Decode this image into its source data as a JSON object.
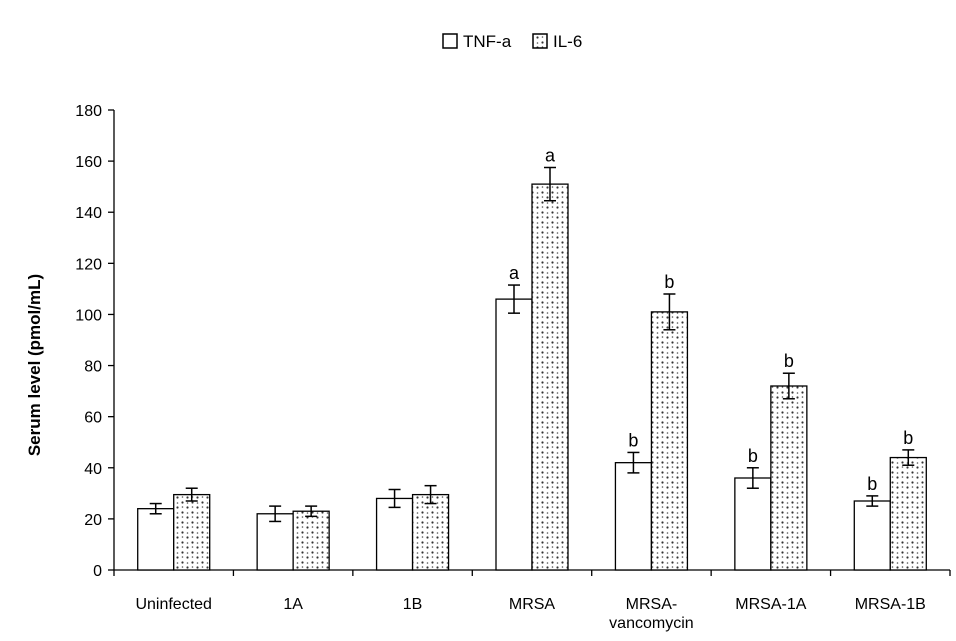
{
  "chart_data": {
    "type": "bar",
    "categories": [
      "Uninfected",
      "1A",
      "1B",
      "MRSA",
      "MRSA-vancomycin",
      "MRSA-1A",
      "MRSA-1B"
    ],
    "category_lines": [
      [
        "Uninfected"
      ],
      [
        "1A"
      ],
      [
        "1B"
      ],
      [
        "MRSA"
      ],
      [
        "MRSA-",
        "vancomycin"
      ],
      [
        "MRSA-1A"
      ],
      [
        "MRSA-1B"
      ]
    ],
    "series": [
      {
        "name": "TNF-a",
        "values": [
          24,
          22,
          28,
          106,
          42,
          36,
          27
        ],
        "errors": [
          2,
          3,
          3.5,
          5.5,
          4,
          4,
          2
        ],
        "annotations": [
          "",
          "",
          "",
          "a",
          "b",
          "b",
          "b"
        ],
        "pattern": "plain"
      },
      {
        "name": "IL-6",
        "values": [
          29.5,
          23,
          29.5,
          151,
          101,
          72,
          44
        ],
        "errors": [
          2.5,
          2,
          3.5,
          6.5,
          7,
          5,
          3
        ],
        "annotations": [
          "",
          "",
          "",
          "a",
          "b",
          "b",
          "b"
        ],
        "pattern": "dotted"
      }
    ],
    "ylabel": "Serum level (pmol/mL)",
    "ylim": [
      0,
      180
    ],
    "yticks": [
      0,
      20,
      40,
      60,
      80,
      100,
      120,
      140,
      160,
      180
    ],
    "grid": false,
    "legend_position": "top-center"
  }
}
